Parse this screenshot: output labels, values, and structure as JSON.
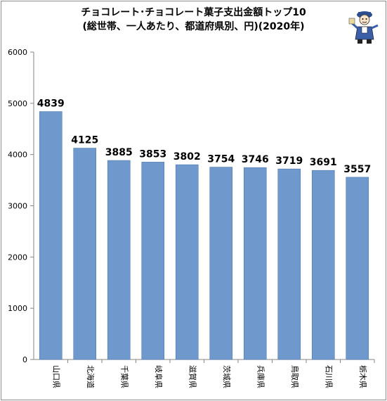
{
  "chart_data": {
    "type": "bar",
    "title_line1": "チョコレート･チョコレート菓子支出金額トップ10",
    "title_line2": "(総世帯、一人あたり、都道府県別、円)(2020年)",
    "categories": [
      "山口県",
      "北海道",
      "千葉県",
      "岐阜県",
      "滋賀県",
      "茨城県",
      "兵庫県",
      "鳥取県",
      "石川県",
      "栃木県"
    ],
    "values": [
      4839,
      4125,
      3885,
      3853,
      3802,
      3754,
      3746,
      3719,
      3691,
      3557
    ],
    "ylim": [
      0,
      6000
    ],
    "yticks": [
      0,
      1000,
      2000,
      3000,
      4000,
      5000,
      6000
    ],
    "xlabel": "",
    "ylabel": "",
    "grid": false,
    "legend": "none",
    "bar_color": "#6f99cd",
    "bar_shadow_color": "#4f79ad"
  }
}
